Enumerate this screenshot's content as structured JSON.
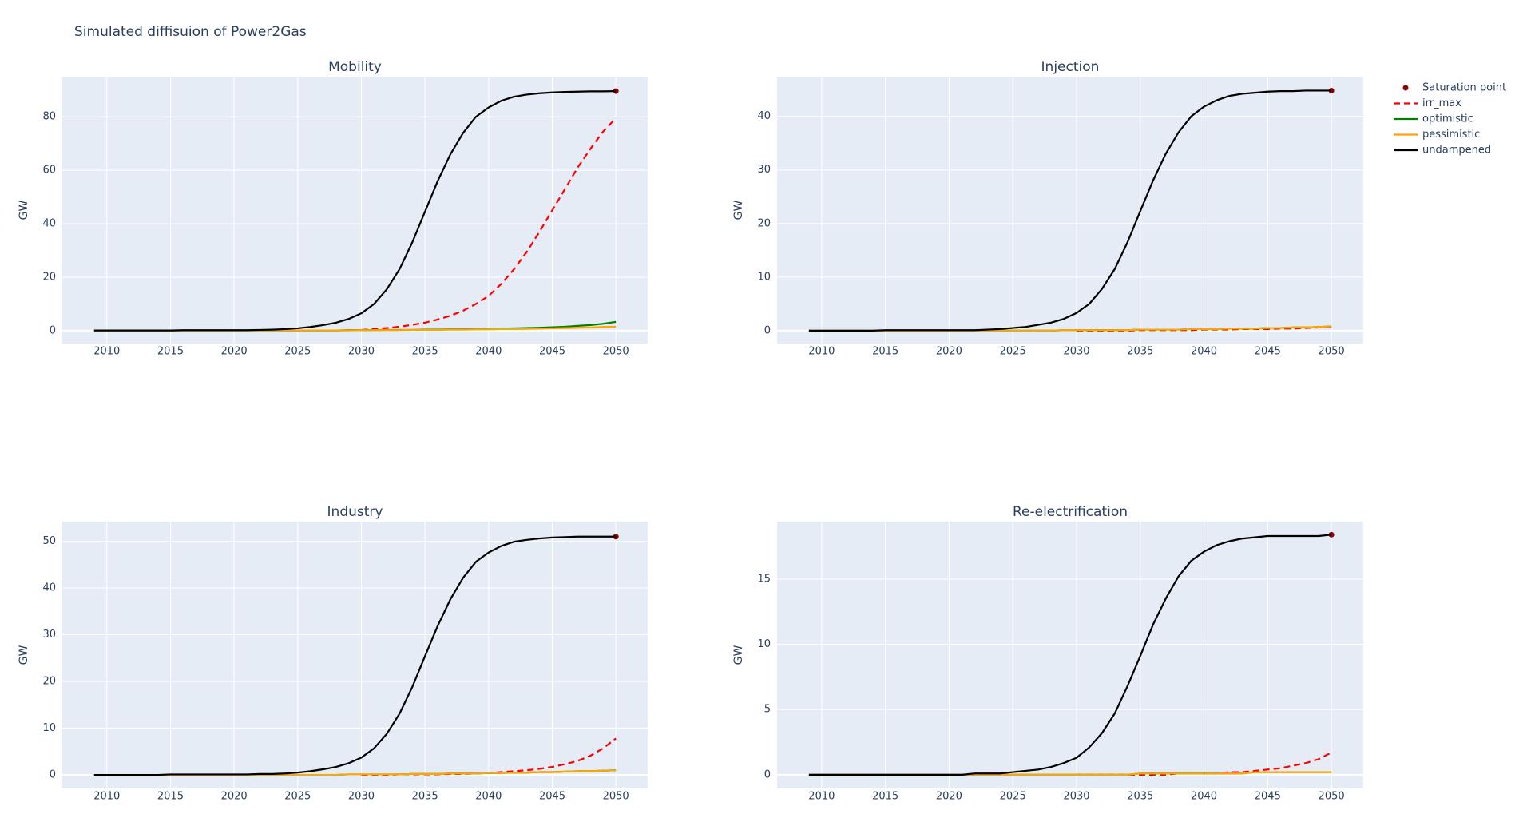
{
  "title": "Simulated diffisuion of Power2Gas",
  "chart_data": [
    {
      "type": "line",
      "title": "Mobility",
      "ylabel": "GW",
      "grid": true,
      "x": [
        2009,
        2010,
        2011,
        2012,
        2013,
        2014,
        2015,
        2016,
        2017,
        2018,
        2019,
        2020,
        2021,
        2022,
        2023,
        2024,
        2025,
        2026,
        2027,
        2028,
        2029,
        2030,
        2031,
        2032,
        2033,
        2034,
        2035,
        2036,
        2037,
        2038,
        2039,
        2040,
        2041,
        2042,
        2043,
        2044,
        2045,
        2046,
        2047,
        2048,
        2049,
        2050
      ],
      "xlim": [
        2006.5,
        2052.5
      ],
      "xticks": [
        2010,
        2015,
        2020,
        2025,
        2030,
        2035,
        2040,
        2045,
        2050
      ],
      "ylim": [
        -4.8,
        95
      ],
      "yticks": [
        0,
        20,
        40,
        60,
        80
      ],
      "series": [
        {
          "name": "Saturation point",
          "mode": "markers",
          "color": "#8b0000",
          "x": [
            2050
          ],
          "values": [
            89.6
          ]
        },
        {
          "name": "irr_max",
          "mode": "lines",
          "dash": "dash",
          "color": "#ff0000",
          "values": [
            null,
            null,
            null,
            null,
            null,
            null,
            null,
            null,
            null,
            null,
            null,
            null,
            null,
            null,
            null,
            null,
            null,
            null,
            null,
            null,
            null,
            0.3,
            0.6,
            1.0,
            1.5,
            2.2,
            3.0,
            4.2,
            5.6,
            7.5,
            10,
            13,
            17.5,
            23,
            29.5,
            37,
            45,
            53,
            61,
            68,
            74.5,
            79.5
          ]
        },
        {
          "name": "optimistic",
          "mode": "lines",
          "color": "#008000",
          "values": [
            0.1,
            0.1,
            0.1,
            0.1,
            0.1,
            0.1,
            0.1,
            0.1,
            0.1,
            0.1,
            0.1,
            0.1,
            0.1,
            0.1,
            0.1,
            0.1,
            0.1,
            0.1,
            0.1,
            0.1,
            0.2,
            0.2,
            0.2,
            0.3,
            0.3,
            0.3,
            0.4,
            0.4,
            0.5,
            0.5,
            0.6,
            0.7,
            0.8,
            0.9,
            1.0,
            1.1,
            1.3,
            1.5,
            1.8,
            2.1,
            2.6,
            3.3
          ]
        },
        {
          "name": "pessimistic",
          "mode": "lines",
          "color": "#ffa500",
          "values": [
            0.1,
            0.1,
            0.1,
            0.1,
            0.1,
            0.1,
            0.1,
            0.1,
            0.1,
            0.1,
            0.1,
            0.1,
            0.1,
            0.1,
            0.1,
            0.1,
            0.1,
            0.1,
            0.1,
            0.1,
            0.1,
            0.2,
            0.2,
            0.2,
            0.2,
            0.3,
            0.3,
            0.3,
            0.4,
            0.4,
            0.5,
            0.5,
            0.6,
            0.6,
            0.7,
            0.8,
            0.9,
            1.0,
            1.1,
            1.2,
            1.4,
            1.5
          ]
        },
        {
          "name": "undampened",
          "mode": "lines",
          "color": "#000000",
          "values": [
            0.1,
            0.1,
            0.1,
            0.1,
            0.1,
            0.1,
            0.1,
            0.2,
            0.2,
            0.2,
            0.2,
            0.2,
            0.2,
            0.3,
            0.4,
            0.6,
            0.9,
            1.4,
            2.1,
            3.0,
            4.4,
            6.5,
            10,
            15.5,
            23,
            33,
            44.5,
            56,
            66,
            74,
            80,
            83.5,
            86,
            87.5,
            88.3,
            88.8,
            89.1,
            89.3,
            89.4,
            89.5,
            89.5,
            89.6
          ]
        }
      ]
    },
    {
      "type": "line",
      "title": "Injection",
      "ylabel": "GW",
      "grid": true,
      "x": [
        2009,
        2010,
        2011,
        2012,
        2013,
        2014,
        2015,
        2016,
        2017,
        2018,
        2019,
        2020,
        2021,
        2022,
        2023,
        2024,
        2025,
        2026,
        2027,
        2028,
        2029,
        2030,
        2031,
        2032,
        2033,
        2034,
        2035,
        2036,
        2037,
        2038,
        2039,
        2040,
        2041,
        2042,
        2043,
        2044,
        2045,
        2046,
        2047,
        2048,
        2049,
        2050
      ],
      "xlim": [
        2006.5,
        2052.5
      ],
      "xticks": [
        2010,
        2015,
        2020,
        2025,
        2030,
        2035,
        2040,
        2045,
        2050
      ],
      "ylim": [
        -2.4,
        47.4
      ],
      "yticks": [
        0,
        10,
        20,
        30,
        40
      ],
      "series": [
        {
          "name": "Saturation point",
          "mode": "markers",
          "color": "#8b0000",
          "x": [
            2050
          ],
          "values": [
            44.8
          ]
        },
        {
          "name": "irr_max",
          "mode": "lines",
          "dash": "dash",
          "color": "#ff0000",
          "values": [
            null,
            null,
            null,
            null,
            null,
            null,
            null,
            null,
            null,
            null,
            null,
            null,
            null,
            null,
            null,
            null,
            null,
            null,
            null,
            null,
            null,
            0,
            0,
            0,
            0,
            0,
            0.1,
            0.1,
            0.1,
            0.1,
            0.1,
            0.2,
            0.2,
            0.2,
            0.3,
            0.3,
            0.3,
            0.4,
            0.4,
            0.5,
            0.6,
            0.7
          ]
        },
        {
          "name": "optimistic",
          "mode": "lines",
          "color": "#008000",
          "values": [
            0,
            0,
            0,
            0,
            0,
            0,
            0,
            0,
            0,
            0,
            0,
            0,
            0,
            0,
            0,
            0,
            0,
            0,
            0,
            0,
            0.1,
            0.1,
            0.1,
            0.1,
            0.1,
            0.1,
            0.2,
            0.2,
            0.2,
            0.2,
            0.3,
            0.3,
            0.3,
            0.4,
            0.4,
            0.4,
            0.5,
            0.5,
            0.6,
            0.6,
            0.7,
            0.8
          ]
        },
        {
          "name": "pessimistic",
          "mode": "lines",
          "color": "#ffa500",
          "values": [
            0,
            0,
            0,
            0,
            0,
            0,
            0,
            0,
            0,
            0,
            0,
            0,
            0,
            0,
            0,
            0,
            0,
            0,
            0,
            0,
            0.1,
            0.1,
            0.1,
            0.1,
            0.1,
            0.1,
            0.2,
            0.2,
            0.2,
            0.2,
            0.3,
            0.3,
            0.3,
            0.4,
            0.4,
            0.4,
            0.5,
            0.5,
            0.6,
            0.6,
            0.7,
            0.8
          ]
        },
        {
          "name": "undampened",
          "mode": "lines",
          "color": "#000000",
          "values": [
            0,
            0,
            0,
            0,
            0,
            0,
            0.1,
            0.1,
            0.1,
            0.1,
            0.1,
            0.1,
            0.1,
            0.1,
            0.2,
            0.3,
            0.5,
            0.7,
            1.1,
            1.5,
            2.2,
            3.3,
            5,
            7.8,
            11.5,
            16.5,
            22.3,
            28,
            33,
            37,
            40,
            41.8,
            43,
            43.8,
            44.2,
            44.4,
            44.6,
            44.7,
            44.7,
            44.8,
            44.8,
            44.8
          ]
        }
      ]
    },
    {
      "type": "line",
      "title": "Industry",
      "ylabel": "GW",
      "grid": true,
      "x": [
        2009,
        2010,
        2011,
        2012,
        2013,
        2014,
        2015,
        2016,
        2017,
        2018,
        2019,
        2020,
        2021,
        2022,
        2023,
        2024,
        2025,
        2026,
        2027,
        2028,
        2029,
        2030,
        2031,
        2032,
        2033,
        2034,
        2035,
        2036,
        2037,
        2038,
        2039,
        2040,
        2041,
        2042,
        2043,
        2044,
        2045,
        2046,
        2047,
        2048,
        2049,
        2050
      ],
      "xlim": [
        2006.5,
        2052.5
      ],
      "xticks": [
        2010,
        2015,
        2020,
        2025,
        2030,
        2035,
        2040,
        2045,
        2050
      ],
      "ylim": [
        -2.9,
        54.2
      ],
      "yticks": [
        0,
        10,
        20,
        30,
        40,
        50
      ],
      "series": [
        {
          "name": "Saturation point",
          "mode": "markers",
          "color": "#8b0000",
          "x": [
            2050
          ],
          "values": [
            51
          ]
        },
        {
          "name": "irr_max",
          "mode": "lines",
          "dash": "dash",
          "color": "#ff0000",
          "values": [
            null,
            null,
            null,
            null,
            null,
            null,
            null,
            null,
            null,
            null,
            null,
            null,
            null,
            null,
            null,
            null,
            null,
            null,
            null,
            null,
            null,
            0,
            0,
            0,
            0.1,
            0.1,
            0.1,
            0.1,
            0.2,
            0.2,
            0.3,
            0.4,
            0.6,
            0.8,
            1.0,
            1.3,
            1.7,
            2.3,
            3.0,
            4.1,
            5.7,
            7.8
          ]
        },
        {
          "name": "optimistic",
          "mode": "lines",
          "color": "#008000",
          "values": [
            0,
            0,
            0,
            0,
            0,
            0,
            0,
            0,
            0,
            0,
            0,
            0,
            0,
            0,
            0,
            0,
            0,
            0,
            0,
            0,
            0.1,
            0.1,
            0.1,
            0.1,
            0.1,
            0.2,
            0.2,
            0.2,
            0.3,
            0.3,
            0.3,
            0.4,
            0.4,
            0.5,
            0.5,
            0.6,
            0.6,
            0.7,
            0.8,
            0.8,
            0.9,
            1.0
          ]
        },
        {
          "name": "pessimistic",
          "mode": "lines",
          "color": "#ffa500",
          "values": [
            0,
            0,
            0,
            0,
            0,
            0,
            0,
            0,
            0,
            0,
            0,
            0,
            0,
            0,
            0,
            0,
            0,
            0,
            0,
            0,
            0.1,
            0.1,
            0.1,
            0.1,
            0.1,
            0.2,
            0.2,
            0.2,
            0.3,
            0.3,
            0.3,
            0.4,
            0.4,
            0.5,
            0.5,
            0.6,
            0.6,
            0.7,
            0.8,
            0.8,
            0.9,
            1.0
          ]
        },
        {
          "name": "undampened",
          "mode": "lines",
          "color": "#000000",
          "values": [
            0,
            0,
            0,
            0,
            0,
            0,
            0.1,
            0.1,
            0.1,
            0.1,
            0.1,
            0.1,
            0.1,
            0.2,
            0.2,
            0.3,
            0.5,
            0.8,
            1.2,
            1.7,
            2.5,
            3.7,
            5.7,
            8.8,
            13.1,
            18.8,
            25.4,
            31.9,
            37.6,
            42.2,
            45.6,
            47.6,
            49,
            49.9,
            50.3,
            50.6,
            50.8,
            50.9,
            51,
            51,
            51,
            51
          ]
        }
      ]
    },
    {
      "type": "line",
      "title": "Re-electrification",
      "ylabel": "GW",
      "grid": true,
      "x": [
        2009,
        2010,
        2011,
        2012,
        2013,
        2014,
        2015,
        2016,
        2017,
        2018,
        2019,
        2020,
        2021,
        2022,
        2023,
        2024,
        2025,
        2026,
        2027,
        2028,
        2029,
        2030,
        2031,
        2032,
        2033,
        2034,
        2035,
        2036,
        2037,
        2038,
        2039,
        2040,
        2041,
        2042,
        2043,
        2044,
        2045,
        2046,
        2047,
        2048,
        2049,
        2050
      ],
      "xlim": [
        2006.5,
        2052.5
      ],
      "xticks": [
        2010,
        2015,
        2020,
        2025,
        2030,
        2035,
        2040,
        2045,
        2050
      ],
      "ylim": [
        -1.05,
        19.4
      ],
      "yticks": [
        0,
        5,
        10,
        15
      ],
      "series": [
        {
          "name": "Saturation point",
          "mode": "markers",
          "color": "#8b0000",
          "x": [
            2050
          ],
          "values": [
            18.4
          ]
        },
        {
          "name": "irr_max",
          "mode": "lines",
          "dash": "dash",
          "color": "#ff0000",
          "values": [
            null,
            null,
            null,
            null,
            null,
            null,
            null,
            null,
            null,
            null,
            null,
            null,
            null,
            null,
            null,
            null,
            null,
            null,
            null,
            null,
            null,
            0,
            0,
            0,
            0,
            0,
            0,
            0,
            0,
            0.1,
            0.1,
            0.1,
            0.1,
            0.2,
            0.2,
            0.3,
            0.4,
            0.5,
            0.7,
            0.9,
            1.2,
            1.7
          ]
        },
        {
          "name": "optimistic",
          "mode": "lines",
          "color": "#008000",
          "values": [
            0,
            0,
            0,
            0,
            0,
            0,
            0,
            0,
            0,
            0,
            0,
            0,
            0,
            0,
            0,
            0,
            0,
            0,
            0,
            0,
            0,
            0,
            0,
            0,
            0,
            0,
            0.1,
            0.1,
            0.1,
            0.1,
            0.1,
            0.1,
            0.1,
            0.1,
            0.1,
            0.2,
            0.2,
            0.2,
            0.2,
            0.2,
            0.2,
            0.2
          ]
        },
        {
          "name": "pessimistic",
          "mode": "lines",
          "color": "#ffa500",
          "values": [
            0,
            0,
            0,
            0,
            0,
            0,
            0,
            0,
            0,
            0,
            0,
            0,
            0,
            0,
            0,
            0,
            0,
            0,
            0,
            0,
            0,
            0,
            0,
            0,
            0,
            0,
            0.1,
            0.1,
            0.1,
            0.1,
            0.1,
            0.1,
            0.1,
            0.1,
            0.1,
            0.2,
            0.2,
            0.2,
            0.2,
            0.2,
            0.2,
            0.2
          ]
        },
        {
          "name": "undampened",
          "mode": "lines",
          "color": "#000000",
          "values": [
            0,
            0,
            0,
            0,
            0,
            0,
            0,
            0,
            0,
            0,
            0,
            0,
            0,
            0.1,
            0.1,
            0.1,
            0.2,
            0.3,
            0.4,
            0.6,
            0.9,
            1.3,
            2.1,
            3.2,
            4.7,
            6.8,
            9.1,
            11.5,
            13.5,
            15.2,
            16.4,
            17.1,
            17.6,
            17.9,
            18.1,
            18.2,
            18.3,
            18.3,
            18.3,
            18.3,
            18.3,
            18.4
          ]
        }
      ]
    }
  ]
}
